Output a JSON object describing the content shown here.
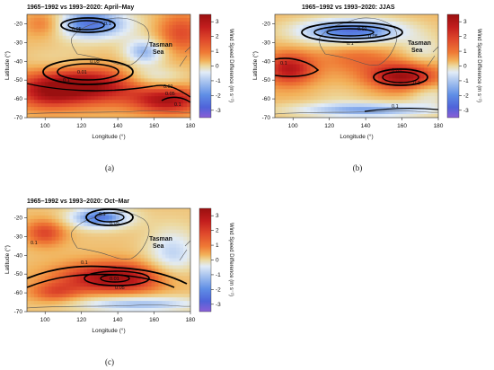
{
  "colors": {
    "cmap": [
      "#8a5fd6",
      "#4f63d9",
      "#5f8ee6",
      "#a9c4ef",
      "#e2ecf7",
      "#ecd9a0",
      "#f2b25a",
      "#ef7a35",
      "#e04b2c",
      "#c21d1d",
      "#9a1010"
    ],
    "contour": "#000000",
    "coast": "#555555"
  },
  "chart_data": [
    {
      "type": "heatmap",
      "panel": "(a)",
      "title": "1965–1992 vs 1993–2020: April–May",
      "xlabel": "Longitude (°)",
      "ylabel": "Latitude (°)",
      "xlim": [
        90,
        180
      ],
      "ylim": [
        -70,
        -15
      ],
      "xticks": [
        "100",
        "120",
        "140",
        "160",
        "180"
      ],
      "xtick_values": [
        100,
        120,
        140,
        160,
        180
      ],
      "yticks": [
        "-20",
        "-30",
        "-40",
        "-50",
        "-60",
        "-70"
      ],
      "ytick_values": [
        -20,
        -30,
        -40,
        -50,
        -60,
        -70
      ],
      "colorbar": {
        "label": "Wind Speed Difference (m s⁻¹)",
        "range": [
          -3.5,
          3.5
        ],
        "ticks": [
          "3",
          "2",
          "1",
          "0",
          "-1",
          "-2",
          "-3"
        ],
        "tick_values": [
          3,
          2,
          1,
          0,
          -1,
          -2,
          -3
        ]
      },
      "annotation": [
        "Tasman",
        "Sea"
      ],
      "contour_labels": [
        "0.1",
        "0.05",
        "0.01",
        "0.05",
        "0.1",
        "0.01",
        "0.05",
        "0.1"
      ],
      "field": {
        "base": 0.5,
        "blobs": [
          {
            "lon": 120,
            "lat": -53,
            "sx": 22,
            "sy": 7,
            "a": 3.2
          },
          {
            "lon": 168,
            "lat": -61,
            "sx": 14,
            "sy": 5,
            "a": 2.6
          },
          {
            "lon": 100,
            "lat": -58,
            "sx": 12,
            "sy": 6,
            "a": 1.2
          },
          {
            "lon": 125,
            "lat": -20,
            "sx": 16,
            "sy": 6,
            "a": -3.0
          },
          {
            "lon": 155,
            "lat": -35,
            "sx": 8,
            "sy": 5,
            "a": -2.2
          },
          {
            "lon": 108,
            "lat": -40,
            "sx": 16,
            "sy": 5,
            "a": -0.6
          },
          {
            "lon": 160,
            "lat": -48,
            "sx": 12,
            "sy": 4,
            "a": -1.2
          },
          {
            "lon": 175,
            "lat": -25,
            "sx": 10,
            "sy": 8,
            "a": 1.6
          },
          {
            "lon": 100,
            "lat": -20,
            "sx": 8,
            "sy": 5,
            "a": 1.5
          }
        ]
      }
    },
    {
      "type": "heatmap",
      "panel": "(b)",
      "title": "1965–1992 vs 1993–2020: JJAS",
      "xlabel": "Longitude (°)",
      "ylabel": "Latitude (°)",
      "xlim": [
        90,
        180
      ],
      "ylim": [
        -70,
        -15
      ],
      "xticks": [
        "100",
        "120",
        "140",
        "160",
        "180"
      ],
      "xtick_values": [
        100,
        120,
        140,
        160,
        180
      ],
      "yticks": [
        "-20",
        "-30",
        "-40",
        "-50",
        "-60",
        "-70"
      ],
      "ytick_values": [
        -20,
        -30,
        -40,
        -50,
        -60,
        -70
      ],
      "colorbar": {
        "label": "Wind Speed Difference (m s⁻¹)",
        "range": [
          -3.5,
          3.5
        ],
        "ticks": [
          "3",
          "2",
          "1",
          "0",
          "-1",
          "-2",
          "-3"
        ],
        "tick_values": [
          3,
          2,
          1,
          0,
          -1,
          -2,
          -3
        ]
      },
      "annotation": [
        "Tasman",
        "Sea"
      ],
      "contour_labels": [
        "0.01",
        "0.05",
        "0.1",
        "0.1",
        "0.05",
        "0.1",
        "0.1"
      ],
      "field": {
        "base": 0.6,
        "blobs": [
          {
            "lon": 132,
            "lat": -24,
            "sx": 22,
            "sy": 5,
            "a": -3.2
          },
          {
            "lon": 160,
            "lat": -48,
            "sx": 13,
            "sy": 5,
            "a": 2.8
          },
          {
            "lon": 98,
            "lat": -44,
            "sx": 10,
            "sy": 6,
            "a": 2.4
          },
          {
            "lon": 140,
            "lat": -66,
            "sx": 30,
            "sy": 3,
            "a": -2.4
          },
          {
            "lon": 125,
            "lat": -58,
            "sx": 12,
            "sy": 4,
            "a": -0.4
          },
          {
            "lon": 135,
            "lat": -38,
            "sx": 14,
            "sy": 6,
            "a": 1.0
          },
          {
            "lon": 172,
            "lat": -34,
            "sx": 8,
            "sy": 5,
            "a": -1.0
          },
          {
            "lon": 175,
            "lat": -58,
            "sx": 8,
            "sy": 4,
            "a": -1.0
          }
        ]
      }
    },
    {
      "type": "heatmap",
      "panel": "(c)",
      "title": "1965–1992 vs 1993–2020: Oct–Mar",
      "xlabel": "Longitude (°)",
      "ylabel": "Latitude (°)",
      "xlim": [
        90,
        180
      ],
      "ylim": [
        -70,
        -15
      ],
      "xticks": [
        "100",
        "120",
        "140",
        "160",
        "180"
      ],
      "xtick_values": [
        100,
        120,
        140,
        160,
        180
      ],
      "yticks": [
        "-20",
        "-30",
        "-40",
        "-50",
        "-60",
        "-70"
      ],
      "ytick_values": [
        -20,
        -30,
        -40,
        -50,
        -60,
        -70
      ],
      "colorbar": {
        "label": "Wind Speed Difference (m s⁻¹)",
        "range": [
          -3.5,
          3.5
        ],
        "ticks": [
          "3",
          "2",
          "1",
          "0",
          "-1",
          "-2",
          "-3"
        ],
        "tick_values": [
          3,
          2,
          1,
          0,
          -1,
          -2,
          -3
        ]
      },
      "annotation": [
        "Tasman",
        "Sea"
      ],
      "contour_labels": [
        "0.1",
        "0.05",
        "0.1",
        "0.01",
        "0.05",
        "0.1"
      ],
      "field": {
        "base": 0.4,
        "blobs": [
          {
            "lon": 138,
            "lat": -52,
            "sx": 22,
            "sy": 6,
            "a": 3.0
          },
          {
            "lon": 130,
            "lat": -20,
            "sx": 12,
            "sy": 4,
            "a": -2.8
          },
          {
            "lon": 170,
            "lat": -40,
            "sx": 10,
            "sy": 10,
            "a": -1.6
          },
          {
            "lon": 100,
            "lat": -28,
            "sx": 8,
            "sy": 5,
            "a": 1.8
          },
          {
            "lon": 150,
            "lat": -66,
            "sx": 25,
            "sy": 3,
            "a": -2.0
          },
          {
            "lon": 105,
            "lat": -60,
            "sx": 10,
            "sy": 4,
            "a": 1.4
          }
        ]
      }
    }
  ],
  "captions": [
    "(a)",
    "(b)",
    "(c)"
  ]
}
